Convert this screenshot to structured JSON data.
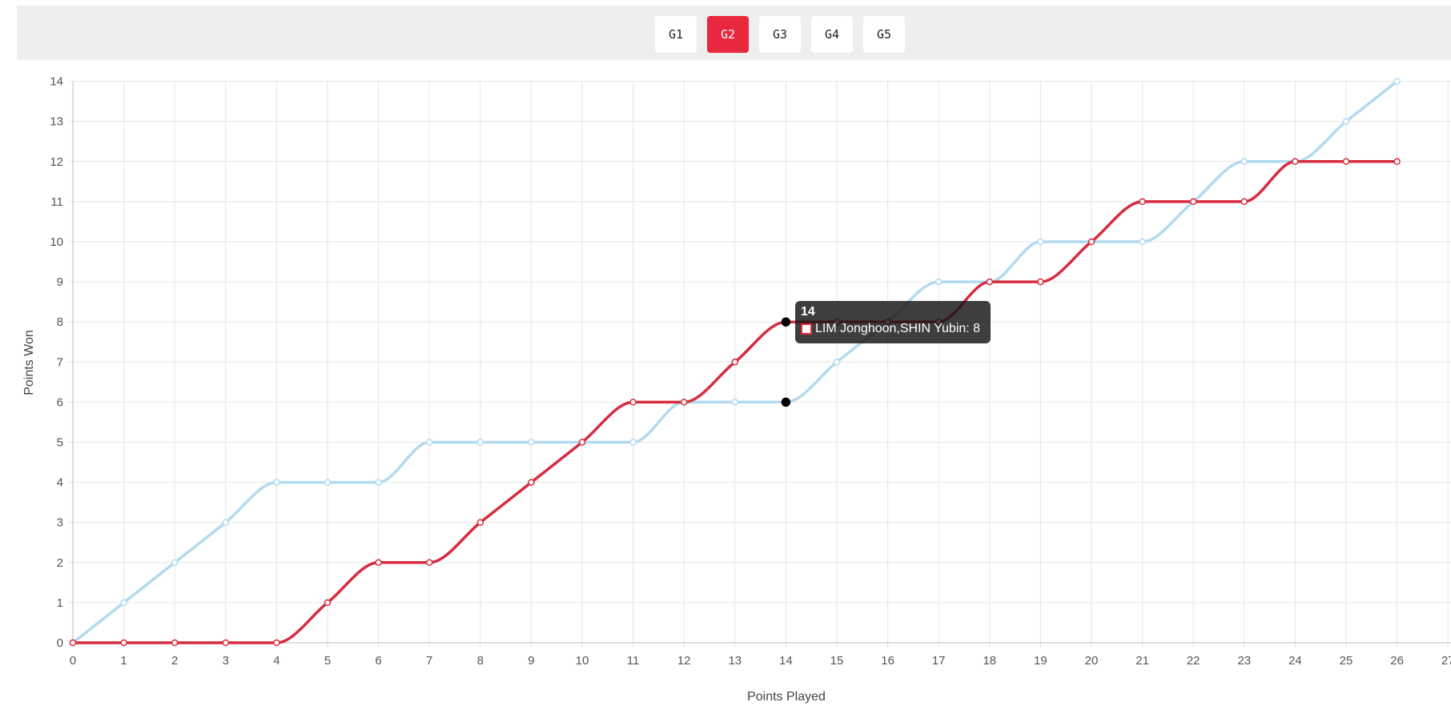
{
  "game_tabs": {
    "items": [
      {
        "label": "G1",
        "active": false
      },
      {
        "label": "G2",
        "active": true
      },
      {
        "label": "G3",
        "active": false
      },
      {
        "label": "G4",
        "active": false
      },
      {
        "label": "G5",
        "active": false
      }
    ],
    "active_color": "#e8283d"
  },
  "tooltip": {
    "title": "14",
    "label": "LIM Jonghoon,SHIN Yubin: 8"
  },
  "chart_data": {
    "type": "line",
    "xlabel": "Points Played",
    "ylabel": "Points Won",
    "xlim": [
      0,
      27
    ],
    "ylim": [
      0,
      14
    ],
    "grid": true,
    "x": [
      0,
      1,
      2,
      3,
      4,
      5,
      6,
      7,
      8,
      9,
      10,
      11,
      12,
      13,
      14,
      15,
      16,
      17,
      18,
      19,
      20,
      21,
      22,
      23,
      24,
      25,
      26
    ],
    "series": [
      {
        "color": "#b2daf0",
        "values": [
          0,
          1,
          2,
          3,
          4,
          4,
          4,
          5,
          5,
          5,
          5,
          5,
          6,
          6,
          6,
          7,
          8,
          9,
          9,
          10,
          10,
          10,
          11,
          12,
          12,
          13,
          14
        ]
      },
      {
        "name": "LIM Jonghoon,SHIN Yubin",
        "color": "#d62c3f",
        "values": [
          0,
          0,
          0,
          0,
          0,
          1,
          2,
          2,
          3,
          4,
          5,
          6,
          6,
          7,
          8,
          8,
          8,
          8,
          9,
          9,
          10,
          11,
          11,
          11,
          12,
          12,
          12
        ]
      }
    ],
    "highlight_x": 14
  }
}
